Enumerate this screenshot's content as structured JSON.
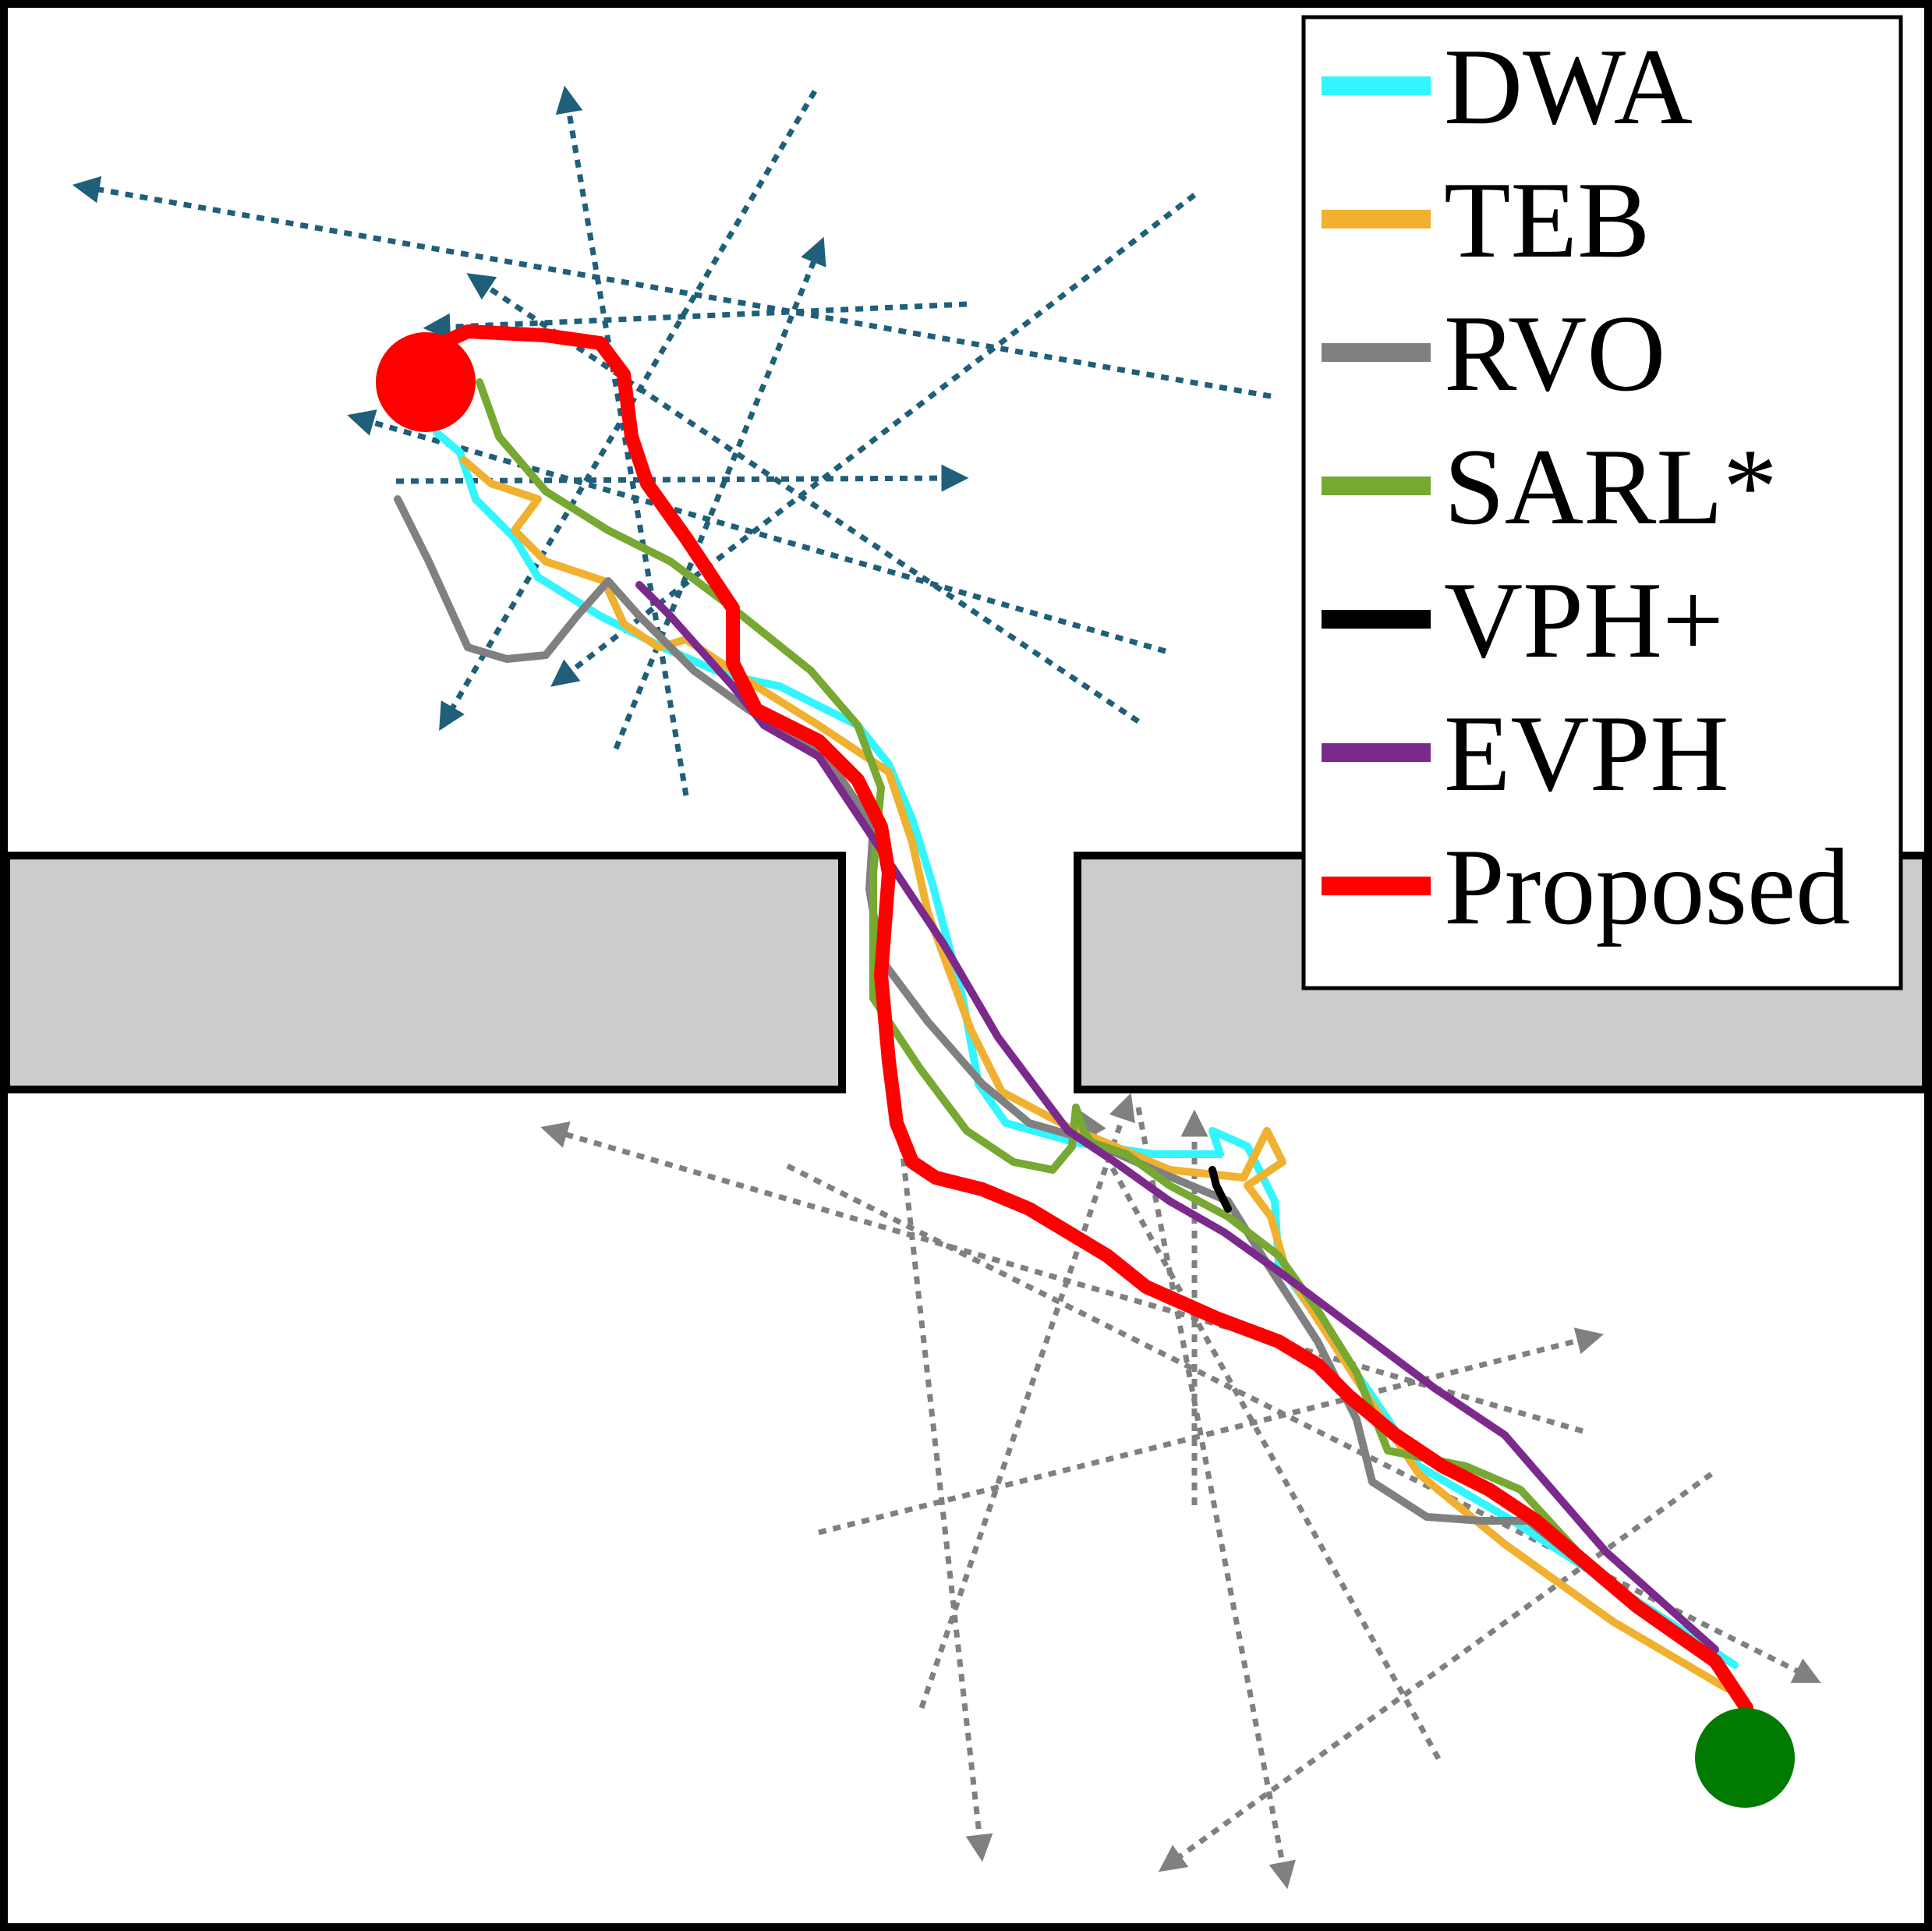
{
  "legend": {
    "items": [
      {
        "label": "DWA",
        "color": "#33f5ff"
      },
      {
        "label": "TEB",
        "color": "#f0b030"
      },
      {
        "label": "RVO",
        "color": "#808080"
      },
      {
        "label": "SARL*",
        "color": "#76a832"
      },
      {
        "label": "VPH+",
        "color": "#000000"
      },
      {
        "label": "EVPH",
        "color": "#7b2a8c"
      },
      {
        "label": "Proposed",
        "color": "#ff0000"
      }
    ]
  },
  "colors": {
    "goal_marker": "#ff0000",
    "start_marker": "#007a00",
    "wall_fill": "#cccccc",
    "upper_pedestrian_arrows": "#1f5f7a",
    "lower_pedestrian_arrows": "#808080"
  }
}
